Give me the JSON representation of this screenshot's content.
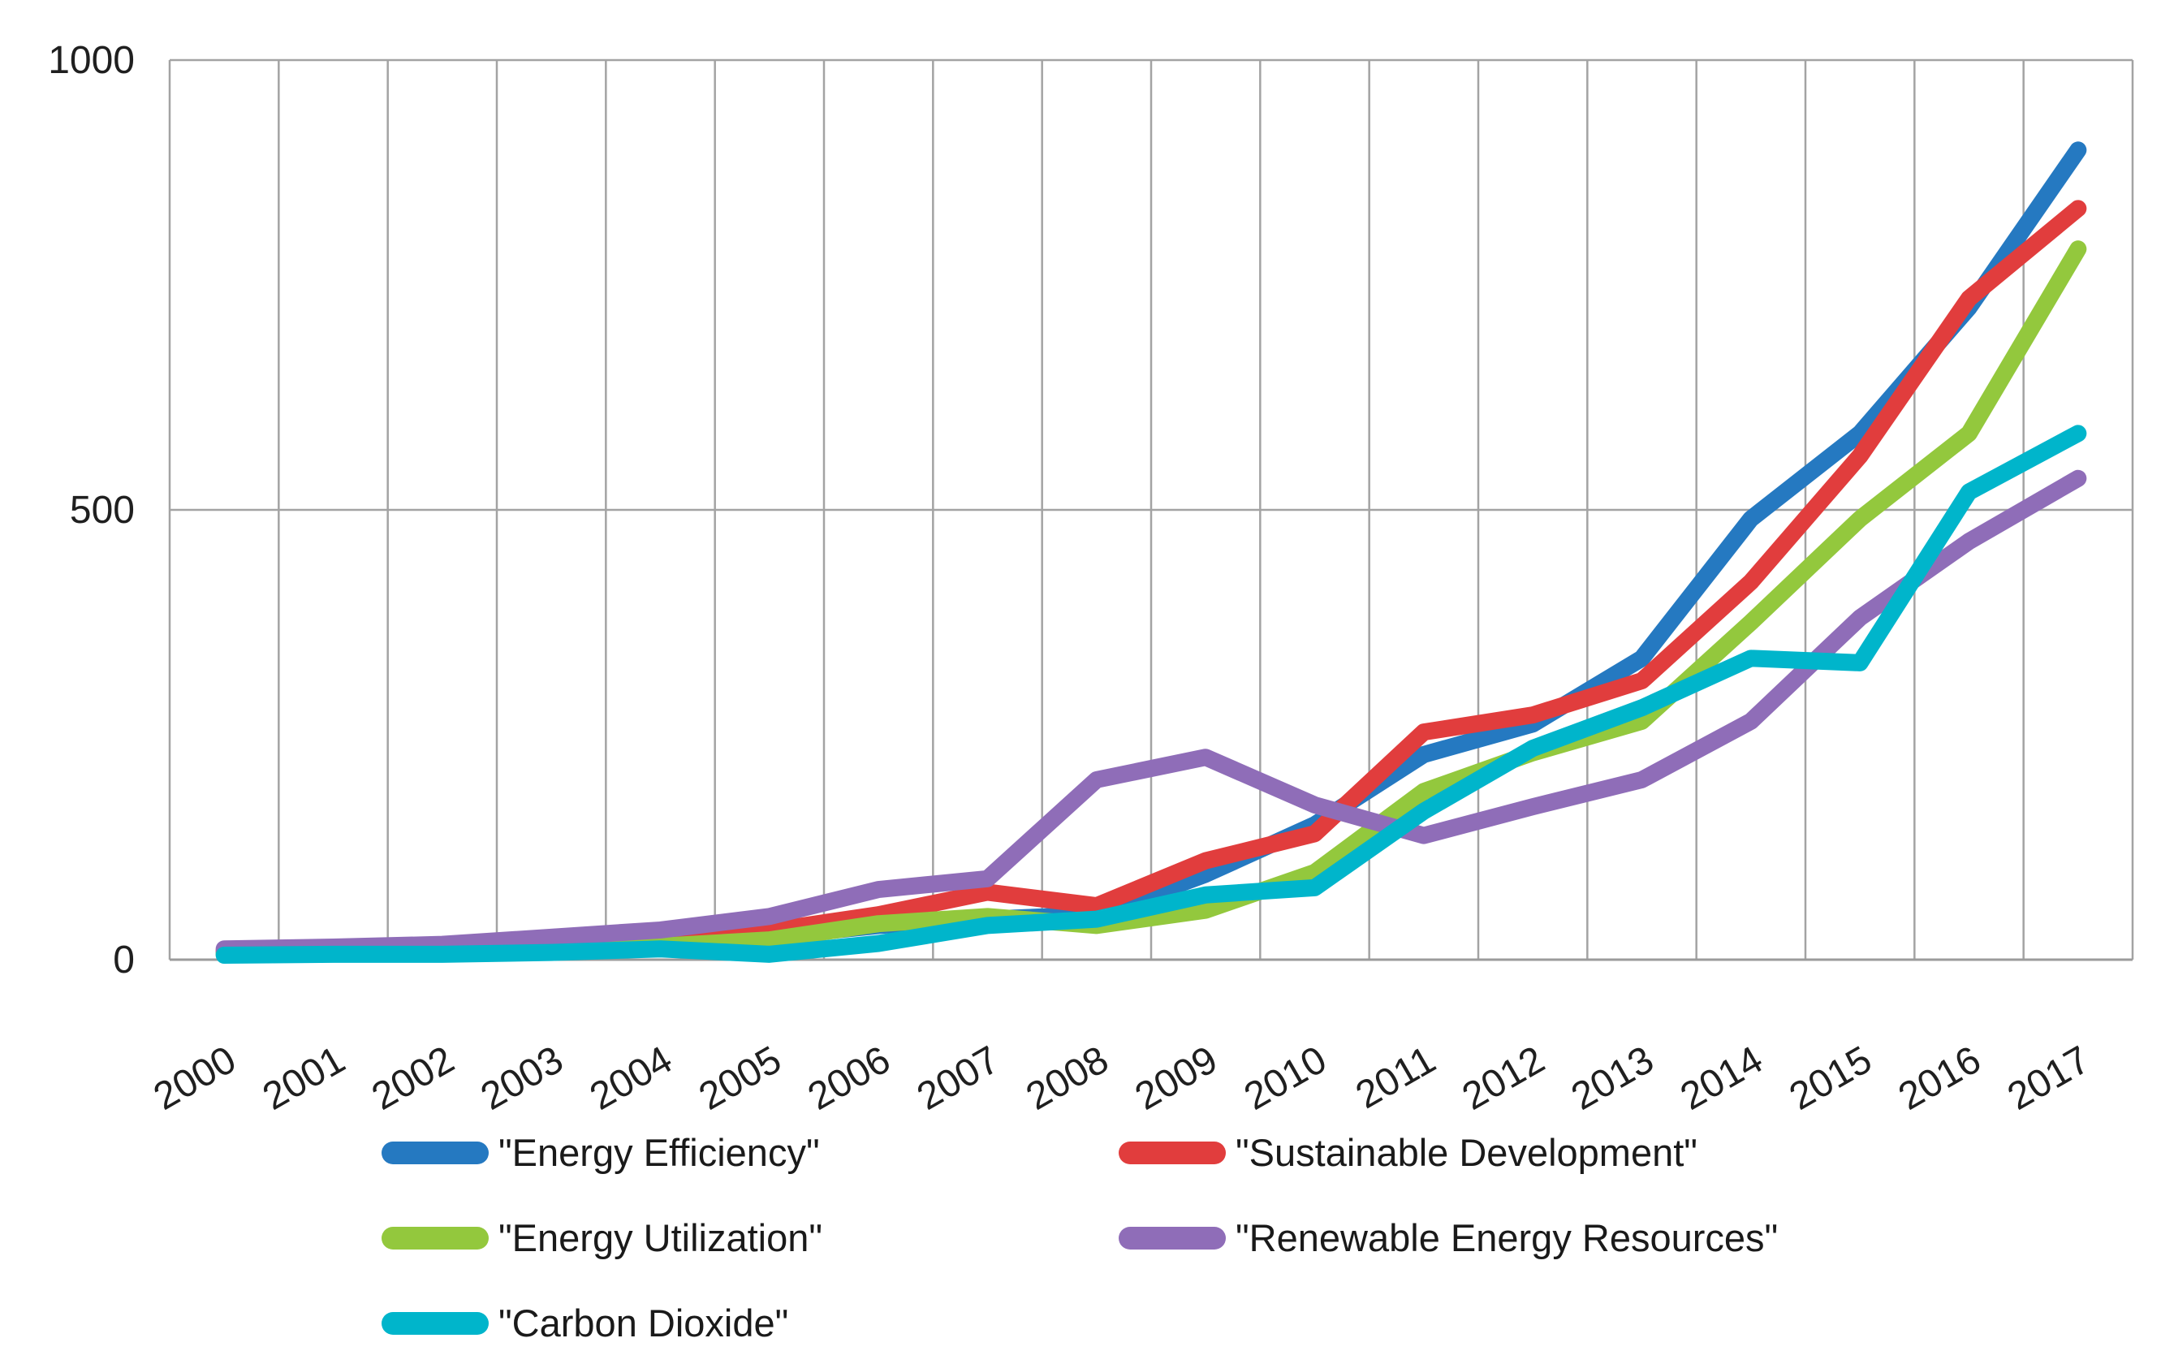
{
  "chart_data": {
    "type": "line",
    "title": "",
    "xlabel": "",
    "ylabel": "",
    "categories": [
      "2000",
      "2001",
      "2002",
      "2003",
      "2004",
      "2005",
      "2006",
      "2007",
      "2008",
      "2009",
      "2010",
      "2011",
      "2012",
      "2013",
      "2014",
      "2015",
      "2016",
      "2017"
    ],
    "y_ticks": [
      0,
      500,
      1000
    ],
    "ylim": [
      0,
      1000
    ],
    "grid": {
      "vertical": true,
      "horizontal_at_ticks": true
    },
    "legend_position": "bottom",
    "series": [
      {
        "name": "\"Energy Efficiency\"",
        "color": "#2579C1",
        "values": [
          8,
          9,
          10,
          13,
          17,
          25,
          38,
          45,
          50,
          95,
          150,
          228,
          262,
          335,
          490,
          585,
          725,
          900
        ]
      },
      {
        "name": "\"Sustainable Development\"",
        "color": "#E13D3D",
        "values": [
          10,
          11,
          13,
          15,
          20,
          32,
          50,
          75,
          60,
          110,
          140,
          253,
          272,
          310,
          420,
          560,
          735,
          835
        ]
      },
      {
        "name": "\"Energy Utilization\"",
        "color": "#93C83D",
        "values": [
          6,
          7,
          8,
          10,
          15,
          22,
          40,
          48,
          38,
          55,
          97,
          187,
          230,
          265,
          375,
          490,
          585,
          790
        ]
      },
      {
        "name": "\"Renewable Energy Resources\"",
        "color": "#8F6DB8",
        "values": [
          12,
          14,
          17,
          25,
          33,
          48,
          78,
          90,
          200,
          225,
          172,
          138,
          170,
          200,
          265,
          380,
          465,
          535
        ]
      },
      {
        "name": "\"Carbon Dioxide\"",
        "color": "#00B5CB",
        "values": [
          5,
          6,
          6,
          8,
          12,
          6,
          18,
          38,
          45,
          72,
          80,
          165,
          235,
          280,
          335,
          330,
          520,
          585
        ]
      }
    ]
  },
  "colors": {
    "background": "#FFFFFF",
    "gridline": "#A3A3A3",
    "axis_line": "#9B9B9B",
    "tick_text": "#1F1F1F"
  }
}
